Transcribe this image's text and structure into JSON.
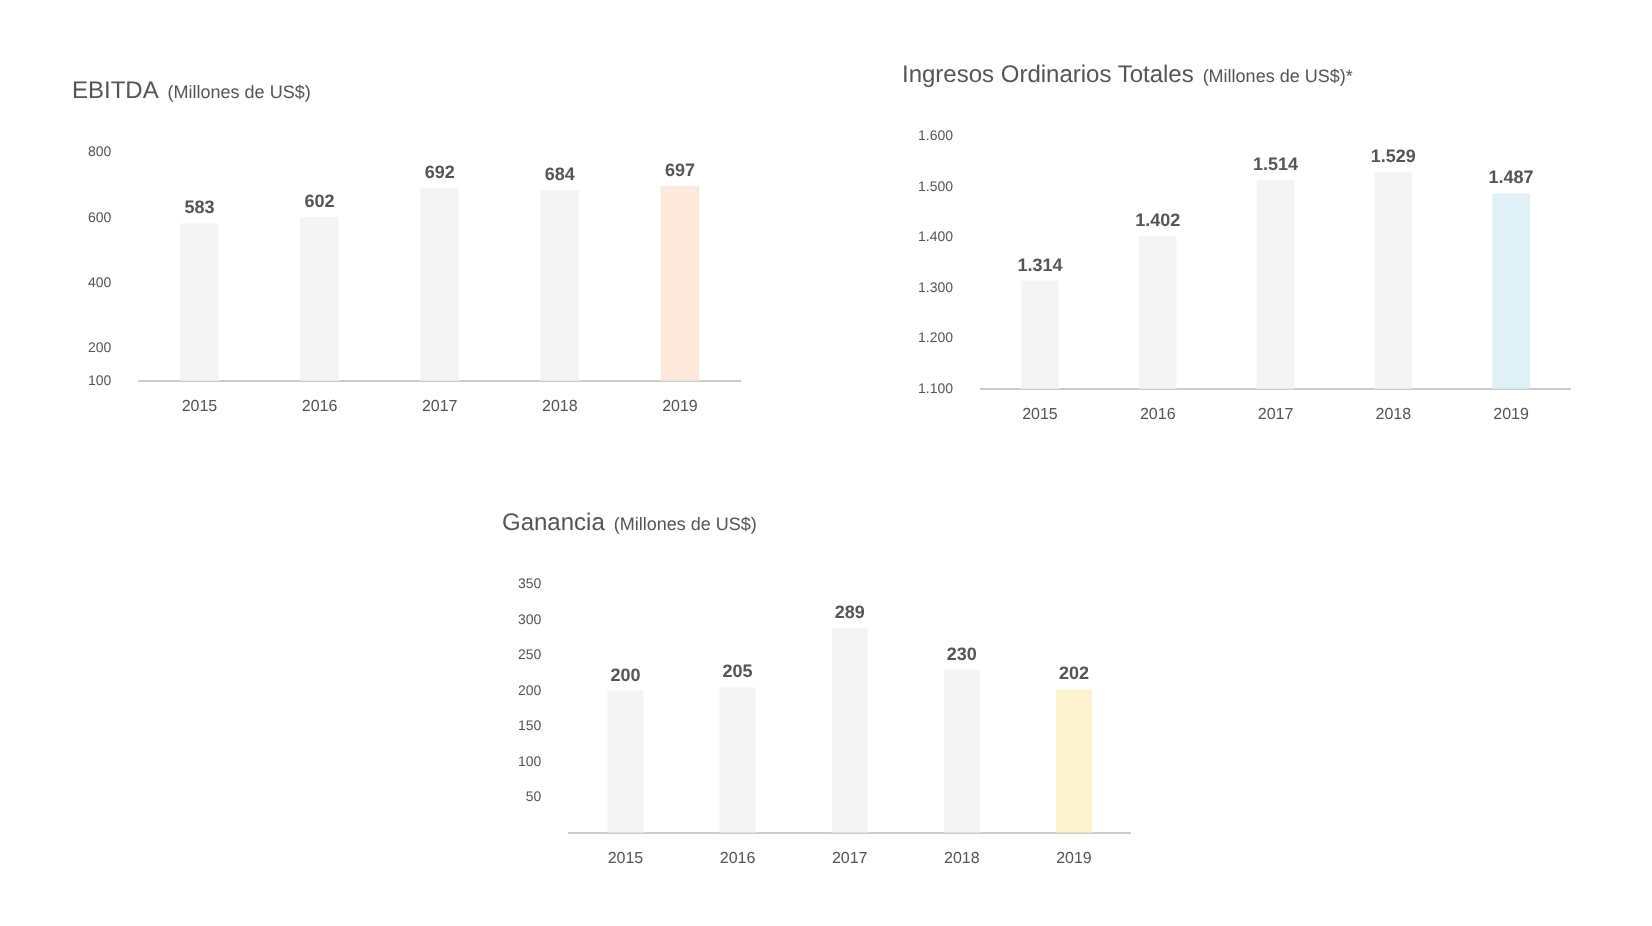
{
  "chart_data": [
    {
      "type": "bar",
      "title": "EBITDA",
      "subtitle": "(Millones de US$)",
      "categories": [
        "2015",
        "2016",
        "2017",
        "2018",
        "2019"
      ],
      "values": [
        583,
        602,
        692,
        684,
        697
      ],
      "colors": [
        "#f4f4f4",
        "#f4f4f4",
        "#f4f4f4",
        "#f4f4f4",
        "#fce9dc"
      ],
      "ylim": [
        100,
        800
      ],
      "yticks": [
        100,
        200,
        400,
        600,
        800
      ],
      "data_labels": true
    },
    {
      "type": "bar",
      "title": "Ingresos Ordinarios Totales",
      "subtitle": "(Millones de US$)*",
      "categories": [
        "2015",
        "2016",
        "2017",
        "2018",
        "2019"
      ],
      "values": [
        1314,
        1402,
        1514,
        1529,
        1487
      ],
      "value_labels": [
        "1.314",
        "1.402",
        "1.514",
        "1.529",
        "1.487"
      ],
      "colors": [
        "#f4f4f4",
        "#f4f4f4",
        "#f4f4f4",
        "#f4f4f4",
        "#dff1f6"
      ],
      "ylim": [
        1100,
        1600
      ],
      "yticks": [
        {
          "value": 1100,
          "label": "1.100"
        },
        {
          "value": 1200,
          "label": "1.200"
        },
        {
          "value": 1300,
          "label": "1.300"
        },
        {
          "value": 1400,
          "label": "1.400"
        },
        {
          "value": 1500,
          "label": "1.500"
        },
        {
          "value": 1600,
          "label": "1.600"
        }
      ]
    },
    {
      "type": "bar",
      "title": "Ganancia",
      "subtitle": "(Millones de US$)",
      "categories": [
        "2015",
        "2016",
        "2017",
        "2018",
        "2019"
      ],
      "values": [
        200,
        205,
        289,
        230,
        202
      ],
      "colors": [
        "#f4f4f4",
        "#f4f4f4",
        "#f4f4f4",
        "#f4f4f4",
        "#fdf3cf"
      ],
      "ylim": [
        0,
        350
      ],
      "yticks": [
        50,
        100,
        150,
        200,
        250,
        300,
        350
      ],
      "data_labels": true
    }
  ]
}
